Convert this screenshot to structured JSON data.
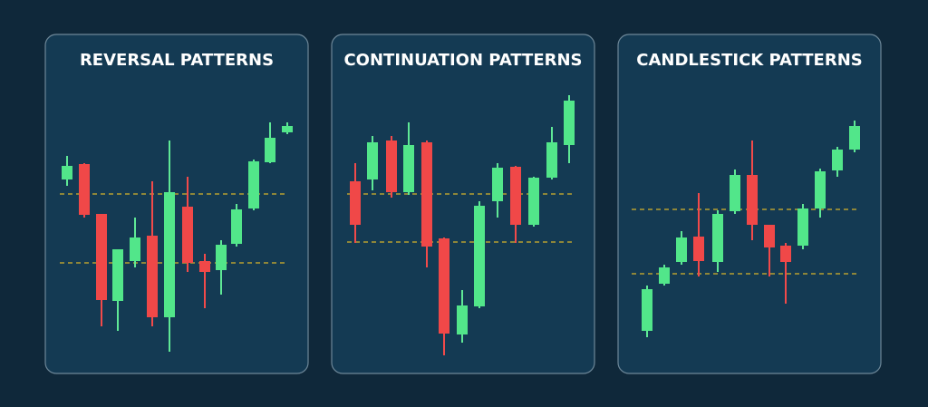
{
  "panels": [
    {
      "title": "REVERSAL PATTERNS"
    },
    {
      "title": "CONTINUATION PATTERNS"
    },
    {
      "title": "CANDLESTICK PATTERNS"
    }
  ]
}
